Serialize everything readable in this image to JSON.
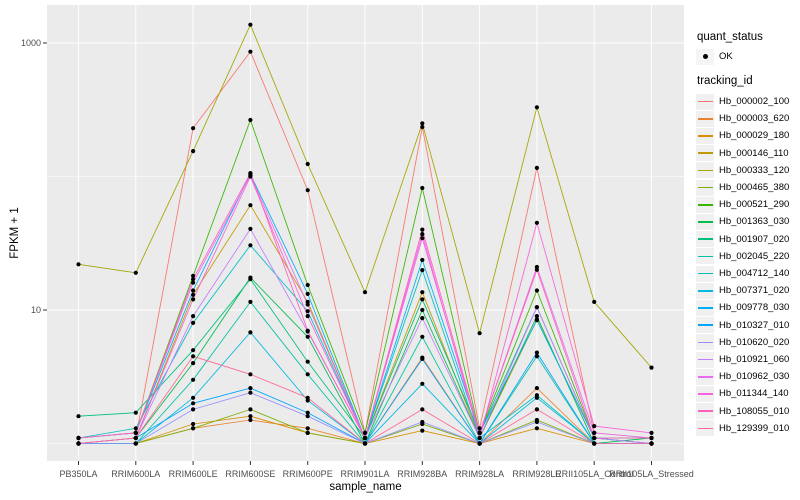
{
  "figure": {
    "xlabel": "sample_name",
    "ylabel": "FPKM + 1"
  },
  "legend": {
    "quant_status_title": "quant_status",
    "quant_status_items": [
      "OK"
    ],
    "tracking_id_title": "tracking_id"
  },
  "chart_data": {
    "type": "line",
    "title": "",
    "xlabel": "sample_name",
    "ylabel": "FPKM + 1",
    "y_scale": "log10",
    "grid": true,
    "legend_position": "right",
    "point_shape": "filled-circle",
    "point_color": "#000000",
    "panel_bg": "#EBEBEB",
    "grid_color": "#FFFFFF",
    "ylim": [
      0.75,
      1930
    ],
    "y_ticks": [
      1000,
      10
    ],
    "y_tick_labels": [
      "1000",
      "10"
    ],
    "y_minor_gridlines": [
      100,
      1
    ],
    "x_categories": [
      "PB350LA",
      "RRIM600LA",
      "RRIM600LE",
      "RRIM600SE",
      "RRIM600PE",
      "RRIM901LA",
      "RRIM928BA",
      "RRIM928LA",
      "RRIM928LE",
      "RRII105LA_Control",
      "RRII105LA_Stressed"
    ],
    "series": [
      {
        "name": "Hb_000002_100",
        "color": "#F8766D",
        "values": [
          1.0,
          1.1,
          230,
          860,
          79,
          1.2,
          235,
          1.3,
          116,
          1.2,
          1.1
        ]
      },
      {
        "name": "Hb_000003_620",
        "color": "#EA8331",
        "values": [
          1.0,
          1.0,
          1.3,
          1.5,
          1.3,
          1.0,
          4.4,
          1.0,
          2.6,
          1.0,
          1.0
        ]
      },
      {
        "name": "Hb_000029_180",
        "color": "#D89000",
        "values": [
          1.0,
          1.0,
          1.4,
          1.6,
          1.2,
          1.0,
          1.25,
          1.0,
          1.3,
          1.0,
          1.0
        ]
      },
      {
        "name": "Hb_000146_110",
        "color": "#C09B00",
        "values": [
          1.0,
          1.1,
          13,
          61,
          11.5,
          1.1,
          13.6,
          1.1,
          8.5,
          1.1,
          1.0
        ]
      },
      {
        "name": "Hb_000333_120",
        "color": "#A3A500",
        "values": [
          22,
          19,
          155,
          1370,
          124,
          13.6,
          250,
          6.7,
          330,
          11.5,
          3.7
        ]
      },
      {
        "name": "Hb_000465_380",
        "color": "#7CAE00",
        "values": [
          1.0,
          1.0,
          1.3,
          1.8,
          1.2,
          1.0,
          1.4,
          1.0,
          1.5,
          1.0,
          1.0
        ]
      },
      {
        "name": "Hb_000521_290",
        "color": "#39B600",
        "values": [
          1.1,
          1.2,
          18,
          265,
          15.4,
          1.2,
          82,
          1.2,
          14,
          1.1,
          1.0
        ]
      },
      {
        "name": "Hb_001363_030",
        "color": "#00BB4E",
        "values": [
          1.0,
          1.1,
          4.0,
          17.5,
          6.3,
          1.0,
          10,
          1.1,
          9.0,
          1.0,
          1.1
        ]
      },
      {
        "name": "Hb_001907_020",
        "color": "#00BF7D",
        "values": [
          1.6,
          1.7,
          5.0,
          17.0,
          4.1,
          1.1,
          12,
          1.2,
          10.5,
          1.1,
          1.1
        ]
      },
      {
        "name": "Hb_002045_220",
        "color": "#00C1A3",
        "values": [
          1.0,
          1.0,
          3.0,
          11.5,
          3.3,
          1.0,
          6.3,
          1.0,
          4.5,
          1.0,
          1.0
        ]
      },
      {
        "name": "Hb_004712_140",
        "color": "#00BFC4",
        "values": [
          1.1,
          1.3,
          8.0,
          30.5,
          9.8,
          1.1,
          19.9,
          1.1,
          2.3,
          1.0,
          1.0
        ]
      },
      {
        "name": "Hb_007371_020",
        "color": "#00BAE0",
        "values": [
          1.0,
          1.0,
          2.2,
          6.8,
          2.1,
          1.0,
          2.8,
          1.0,
          2.2,
          1.0,
          1.0
        ]
      },
      {
        "name": "Hb_009778_030",
        "color": "#00B0F6",
        "values": [
          1.1,
          1.2,
          14,
          104,
          13.2,
          1.1,
          23.7,
          1.2,
          8.4,
          1.1,
          1.0
        ]
      },
      {
        "name": "Hb_010327_010",
        "color": "#00A5FF",
        "values": [
          1.0,
          1.1,
          2.0,
          2.6,
          1.7,
          1.0,
          4.3,
          1.0,
          4.8,
          1.0,
          1.0
        ]
      },
      {
        "name": "Hb_010620_020",
        "color": "#9590FF",
        "values": [
          1.0,
          1.0,
          1.8,
          2.4,
          1.6,
          1.0,
          1.45,
          1.0,
          1.45,
          1.0,
          1.0
        ]
      },
      {
        "name": "Hb_010921_060",
        "color": "#C77CFF",
        "values": [
          1.0,
          1.1,
          9.0,
          40.5,
          6.9,
          1.1,
          8.7,
          1.1,
          10.5,
          1.1,
          1.0
        ]
      },
      {
        "name": "Hb_010962_030",
        "color": "#E76BF3",
        "values": [
          1.1,
          1.2,
          16,
          102,
          11,
          1.1,
          34.5,
          1.2,
          21,
          1.2,
          1.1
        ]
      },
      {
        "name": "Hb_011344_140",
        "color": "#FA62DB",
        "values": [
          1.0,
          1.1,
          12,
          100,
          9.0,
          1.1,
          37,
          1.1,
          45,
          1.35,
          1.2
        ]
      },
      {
        "name": "Hb_108055_010",
        "color": "#FF62BC",
        "values": [
          1.1,
          1.2,
          17,
          106,
          7.0,
          1.1,
          40,
          1.2,
          20,
          1.1,
          1.1
        ]
      },
      {
        "name": "Hb_129399_010",
        "color": "#FF6A98",
        "values": [
          1.0,
          1.1,
          4.5,
          3.3,
          2.2,
          1.0,
          1.8,
          1.0,
          1.8,
          1.0,
          1.0
        ]
      }
    ]
  }
}
